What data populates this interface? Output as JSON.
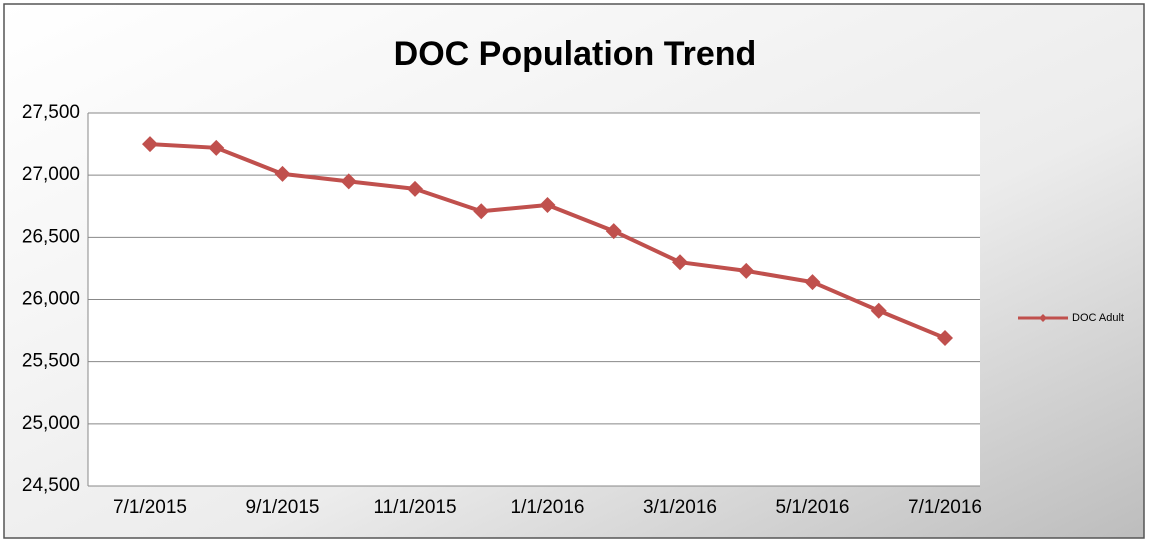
{
  "chart_data": {
    "type": "line",
    "title": "DOC Population Trend",
    "categories": [
      "7/1/2015",
      null,
      "9/1/2015",
      null,
      "11/1/2015",
      null,
      "1/1/2016",
      null,
      "3/1/2016",
      null,
      "5/1/2016",
      null,
      "7/1/2016"
    ],
    "series": [
      {
        "name": "DOC Adult",
        "color": "#c0504d",
        "values": [
          27250,
          27220,
          27010,
          26950,
          26890,
          26710,
          26760,
          26550,
          26300,
          26230,
          26140,
          25910,
          25690
        ]
      }
    ],
    "ylim": [
      24500,
      27500
    ],
    "yticks": [
      {
        "value": 24500,
        "label": "24,500"
      },
      {
        "value": 25000,
        "label": "25,000"
      },
      {
        "value": 25500,
        "label": "25,500"
      },
      {
        "value": 26000,
        "label": "26,000"
      },
      {
        "value": 26500,
        "label": "26,500"
      },
      {
        "value": 27000,
        "label": "27,000"
      },
      {
        "value": 27500,
        "label": "27,500"
      }
    ],
    "grid": true,
    "legend": "right"
  }
}
